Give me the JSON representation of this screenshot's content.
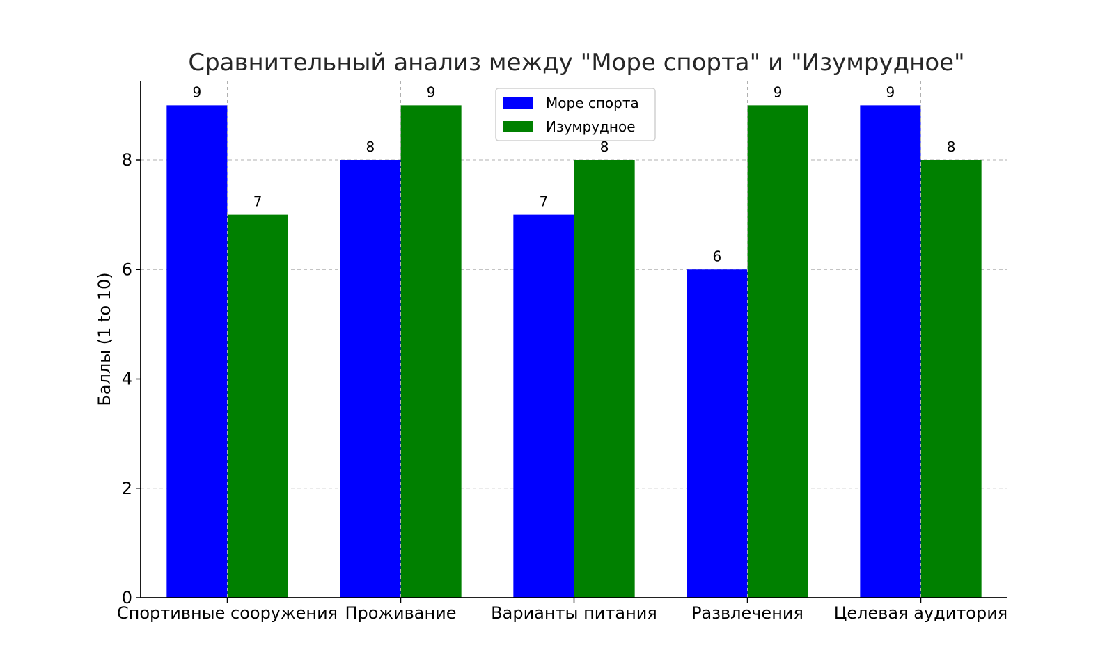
{
  "chart_data": {
    "type": "bar",
    "title": "Сравнительный анализ между \"Море спорта\" и \"Изумрудное\"",
    "xlabel": "",
    "ylabel": "Баллы (1 to 10)",
    "categories": [
      "Спортивные сооружения",
      "Проживание",
      "Варианты питания",
      "Развлечения",
      "Целевая аудитория"
    ],
    "series": [
      {
        "name": "Море спорта",
        "color": "#0000ff",
        "values": [
          9,
          8,
          7,
          6,
          9
        ]
      },
      {
        "name": "Изумрудное",
        "color": "#008000",
        "values": [
          7,
          9,
          8,
          9,
          8
        ]
      }
    ],
    "ylim": [
      0,
      9.45
    ],
    "yticks": [
      0,
      2,
      4,
      6,
      8
    ],
    "grid": true,
    "legend": "top-center"
  }
}
